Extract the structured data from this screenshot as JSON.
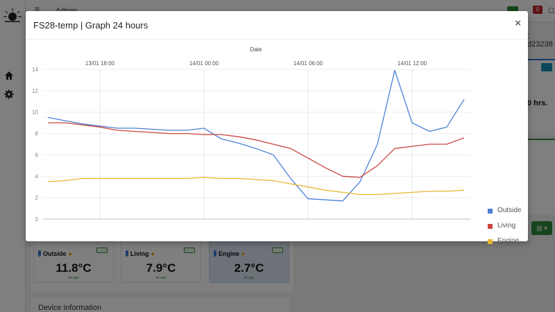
{
  "background": {
    "topbar": {
      "user_label": "Admin",
      "alert_count": "0"
    },
    "device_id_fragment": ": d23238",
    "runtime_fragment": "0 hrs.",
    "sensors": [
      {
        "name": "Outside",
        "value": "11.8°C",
        "ago": "4s ago"
      },
      {
        "name": "Living",
        "value": "7.9°C",
        "ago": "4s ago"
      },
      {
        "name": "Engine",
        "value": "2.7°C",
        "ago": "4s ago"
      }
    ],
    "device_info_label": "Device information"
  },
  "modal": {
    "title": "FS28-temp | Graph 24 hours",
    "close_label": "×"
  },
  "chart_data": {
    "type": "line",
    "title": "",
    "xlabel": "Date",
    "ylabel": "",
    "x_ticks": [
      "13/01 18:00",
      "14/01 00:00",
      "14/01 06:00",
      "14/01 12:00"
    ],
    "y_ticks": [
      0,
      2,
      4,
      6,
      8,
      10,
      12,
      14
    ],
    "ylim": [
      0,
      14
    ],
    "x_axis_position": "top",
    "grid": true,
    "legend_position": "right",
    "x_hours_from_start": [
      0,
      1,
      2,
      3,
      4,
      5,
      6,
      7,
      8,
      9,
      10,
      11,
      12,
      13,
      14,
      15,
      16,
      17,
      18,
      19,
      20,
      21,
      22,
      23,
      24
    ],
    "x_start": "13/01 15:00",
    "series": [
      {
        "name": "Outside",
        "color": "#4a7fd6",
        "values": [
          9.5,
          9.2,
          8.9,
          8.7,
          8.5,
          8.5,
          8.4,
          8.3,
          8.3,
          8.5,
          7.5,
          7.1,
          6.6,
          6.0,
          3.8,
          1.9,
          1.8,
          1.7,
          3.5,
          7.0,
          13.9,
          9.0,
          8.2,
          8.6,
          11.2
        ]
      },
      {
        "name": "Living",
        "color": "#c9453d",
        "values": [
          9.0,
          9.0,
          8.8,
          8.6,
          8.3,
          8.2,
          8.1,
          8.0,
          8.0,
          7.9,
          7.9,
          7.7,
          7.4,
          7.0,
          6.6,
          5.7,
          4.8,
          4.0,
          3.9,
          5.0,
          6.6,
          6.8,
          7.0,
          7.0,
          7.6
        ]
      },
      {
        "name": "Engine",
        "color": "#e8b634",
        "values": [
          3.5,
          3.6,
          3.8,
          3.8,
          3.8,
          3.8,
          3.8,
          3.8,
          3.8,
          3.9,
          3.8,
          3.8,
          3.7,
          3.6,
          3.3,
          3.0,
          2.7,
          2.5,
          2.3,
          2.3,
          2.4,
          2.5,
          2.6,
          2.6,
          2.7
        ]
      }
    ]
  },
  "legend": [
    {
      "label": "Outside",
      "color": "#4a7fd6"
    },
    {
      "label": "Living",
      "color": "#c9453d"
    },
    {
      "label": "Engine",
      "color": "#e8b634"
    }
  ],
  "icons": {
    "home": "⌂",
    "gear": "⚙",
    "hamburger": "≡",
    "bell": "🔔",
    "close": "×"
  }
}
